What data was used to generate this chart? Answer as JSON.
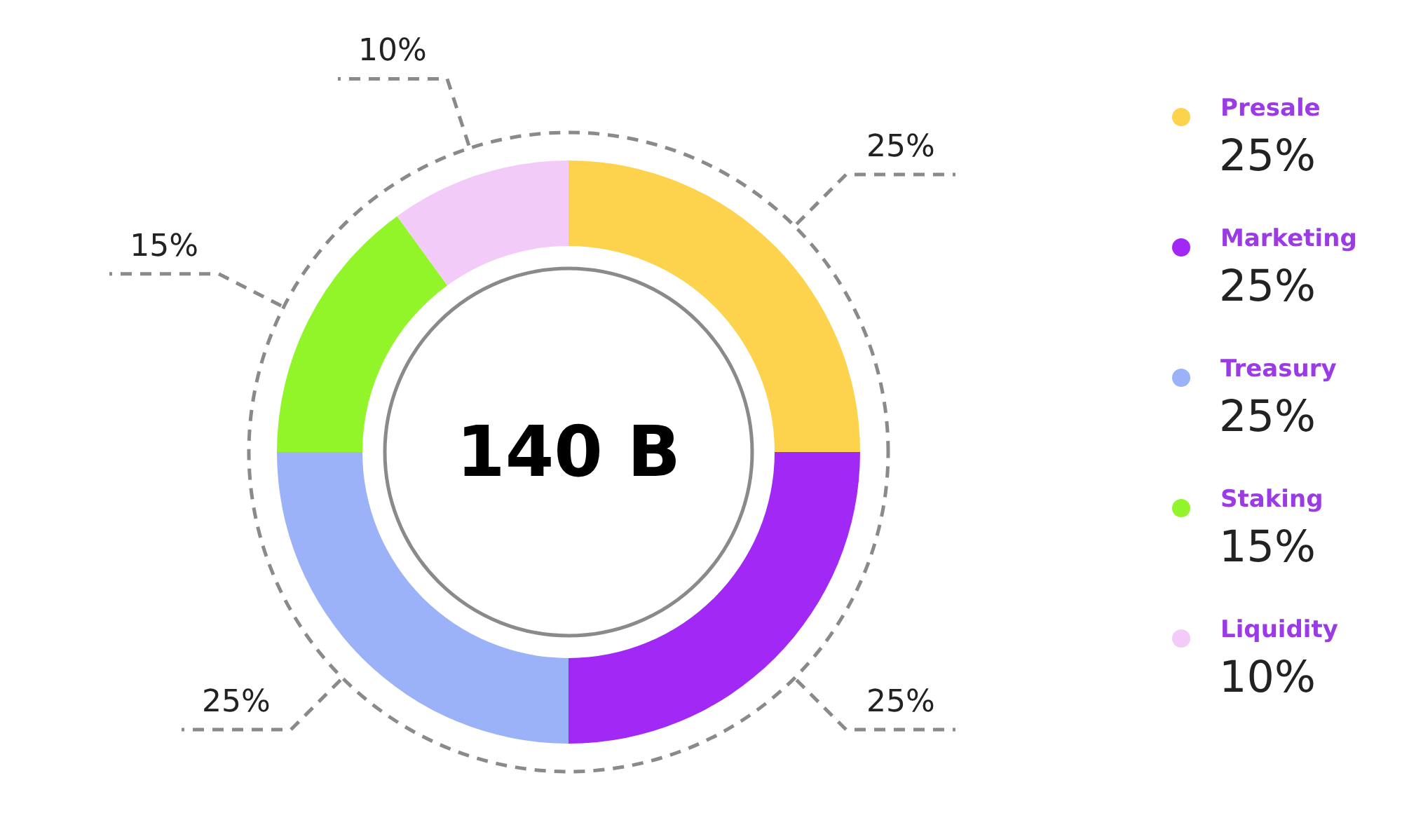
{
  "chart_data": {
    "type": "donut",
    "categories": [
      "Presale",
      "Marketing",
      "Treasury",
      "Staking",
      "Liquidity"
    ],
    "values": [
      25,
      25,
      25,
      15,
      10
    ],
    "colors": [
      "#fdd34d",
      "#a128f5",
      "#9bb2f9",
      "#92f52a",
      "#f2cbf8"
    ],
    "value_labels": [
      "25%",
      "25%",
      "25%",
      "15%",
      "10%"
    ],
    "annotations": [
      "140 B"
    ],
    "legend": "right"
  }
}
